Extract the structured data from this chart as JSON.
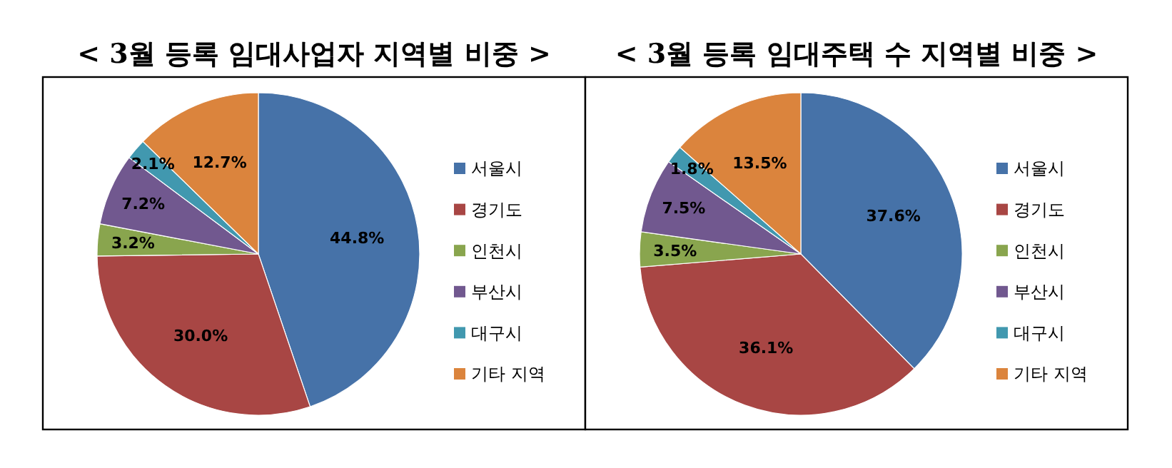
{
  "chart_data": [
    {
      "type": "pie",
      "title": "< 3월 등록 임대사업자 지역별 비중 >",
      "categories": [
        "서울시",
        "경기도",
        "인천시",
        "부산시",
        "대구시",
        "기타 지역"
      ],
      "values": [
        44.8,
        30.0,
        3.2,
        7.2,
        2.1,
        12.7
      ],
      "value_labels": [
        "44.8%",
        "30.0%",
        "3.2%",
        "7.2%",
        "2.1%",
        "12.7%"
      ],
      "colors": [
        "#4672a8",
        "#a84644",
        "#89a54e",
        "#71588f",
        "#4198af",
        "#db843d"
      ],
      "legend": "right"
    },
    {
      "type": "pie",
      "title": "< 3월 등록 임대주택 수 지역별 비중 >",
      "categories": [
        "서울시",
        "경기도",
        "인천시",
        "부산시",
        "대구시",
        "기타 지역"
      ],
      "values": [
        37.6,
        36.1,
        3.5,
        7.5,
        1.8,
        13.5
      ],
      "value_labels": [
        "37.6%",
        "36.1%",
        "3.5%",
        "7.5%",
        "1.8%",
        "13.5%"
      ],
      "colors": [
        "#4672a8",
        "#a84644",
        "#89a54e",
        "#71588f",
        "#4198af",
        "#db843d"
      ],
      "legend": "right"
    }
  ]
}
